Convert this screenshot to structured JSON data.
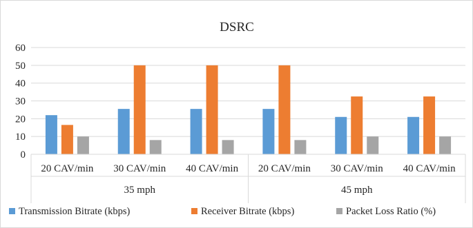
{
  "chart_data": {
    "type": "bar",
    "title": "DSRC",
    "xlabel": "",
    "ylabel": "",
    "ylim": [
      0,
      60
    ],
    "yticks": [
      0,
      10,
      20,
      30,
      40,
      50,
      60
    ],
    "grid": true,
    "legend_position": "bottom",
    "groups": [
      {
        "label": "35 mph",
        "categories": [
          "20 CAV/min",
          "30 CAV/min",
          "40 CAV/min"
        ]
      },
      {
        "label": "45 mph",
        "categories": [
          "20 CAV/min",
          "30 CAV/min",
          "40 CAV/min"
        ]
      }
    ],
    "categories": [
      "20 CAV/min",
      "30 CAV/min",
      "40 CAV/min",
      "20 CAV/min",
      "30 CAV/min",
      "40 CAV/min"
    ],
    "series": [
      {
        "name": "Transmission Bitrate (kbps)",
        "color": "#5b9bd5",
        "values": [
          22,
          25.5,
          25.5,
          25.5,
          21,
          21
        ]
      },
      {
        "name": "Receiver Bitrate (kbps)",
        "color": "#ed7d31",
        "values": [
          16.5,
          50,
          50,
          50,
          32.5,
          32.5
        ]
      },
      {
        "name": "Packet Loss Ratio (%)",
        "color": "#a5a5a5",
        "values": [
          10,
          8,
          8,
          8,
          10,
          10
        ]
      }
    ]
  }
}
